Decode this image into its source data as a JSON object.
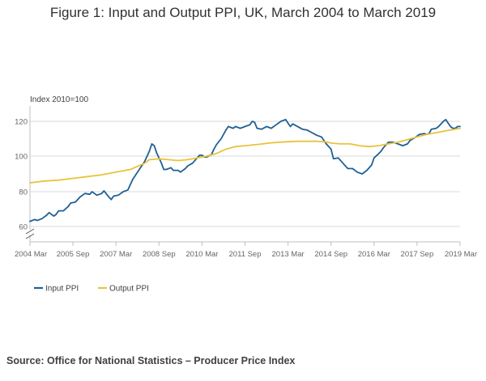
{
  "chart_data": {
    "type": "line",
    "title": "Figure 1: Input and Output PPI, UK, March 2004 to March 2019",
    "ylabel": "Index 2010=100",
    "xlabel": "",
    "ylim": [
      60,
      130
    ],
    "yticks": [
      {
        "value": 60,
        "label": "60"
      },
      {
        "value": 80,
        "label": "80"
      },
      {
        "value": 100,
        "label": "100"
      },
      {
        "value": 120,
        "label": "120"
      }
    ],
    "xticks": [
      {
        "t": 0,
        "label": "2004 Mar"
      },
      {
        "t": 18,
        "label": "2005 Sep"
      },
      {
        "t": 36,
        "label": "2007 Mar"
      },
      {
        "t": 54,
        "label": "2008 Sep"
      },
      {
        "t": 72,
        "label": "2010 Mar"
      },
      {
        "t": 90,
        "label": "2011 Sep"
      },
      {
        "t": 108,
        "label": "2013 Mar"
      },
      {
        "t": 126,
        "label": "2014 Sep"
      },
      {
        "t": 144,
        "label": "2016 Mar"
      },
      {
        "t": 162,
        "label": "2017 Sep"
      },
      {
        "t": 180,
        "label": "2019 Mar"
      }
    ],
    "grid": true,
    "axis_break": true,
    "x_unit": "months since 2004 Mar",
    "series": [
      {
        "name": "Input PPI",
        "color": "#206095",
        "points": [
          [
            0,
            63
          ],
          [
            2,
            64
          ],
          [
            3,
            63.5
          ],
          [
            5,
            64.5
          ],
          [
            7,
            66.5
          ],
          [
            8,
            68
          ],
          [
            10,
            66
          ],
          [
            11,
            67
          ],
          [
            12,
            69
          ],
          [
            14,
            69
          ],
          [
            16,
            71.5
          ],
          [
            17,
            73.5
          ],
          [
            19,
            74
          ],
          [
            21,
            77
          ],
          [
            23,
            79
          ],
          [
            25,
            78.5
          ],
          [
            26,
            80
          ],
          [
            27,
            79
          ],
          [
            28,
            78
          ],
          [
            30,
            79
          ],
          [
            31,
            80.5
          ],
          [
            33,
            77
          ],
          [
            34,
            75.5
          ],
          [
            35,
            77.5
          ],
          [
            37,
            78
          ],
          [
            39,
            80
          ],
          [
            41,
            81
          ],
          [
            43,
            87
          ],
          [
            45,
            91
          ],
          [
            47,
            95
          ],
          [
            48,
            97
          ],
          [
            50,
            103
          ],
          [
            51,
            107
          ],
          [
            52,
            106
          ],
          [
            53,
            102
          ],
          [
            55,
            96
          ],
          [
            56,
            92.5
          ],
          [
            57,
            92.5
          ],
          [
            59,
            93.5
          ],
          [
            60,
            92
          ],
          [
            62,
            92
          ],
          [
            63,
            91
          ],
          [
            65,
            93
          ],
          [
            66,
            94.5
          ],
          [
            68,
            96
          ],
          [
            70,
            99
          ],
          [
            71,
            100.5
          ],
          [
            72,
            100.5
          ],
          [
            73,
            99.5
          ],
          [
            74,
            99.5
          ],
          [
            76,
            101
          ],
          [
            77,
            104
          ],
          [
            78,
            106.5
          ],
          [
            80,
            110
          ],
          [
            82,
            115
          ],
          [
            83,
            117
          ],
          [
            85,
            116
          ],
          [
            86,
            117
          ],
          [
            88,
            116
          ],
          [
            90,
            117
          ],
          [
            92,
            118
          ],
          [
            93,
            120
          ],
          [
            94,
            119.5
          ],
          [
            95,
            116
          ],
          [
            97,
            115.5
          ],
          [
            99,
            117
          ],
          [
            101,
            116
          ],
          [
            103,
            118
          ],
          [
            105,
            120
          ],
          [
            107,
            121
          ],
          [
            108,
            119
          ],
          [
            109,
            117
          ],
          [
            110,
            118.5
          ],
          [
            112,
            117
          ],
          [
            114,
            115.5
          ],
          [
            116,
            115
          ],
          [
            118,
            113.5
          ],
          [
            120,
            112
          ],
          [
            122,
            111
          ],
          [
            124,
            107
          ],
          [
            126,
            104
          ],
          [
            127,
            98.5
          ],
          [
            129,
            99
          ],
          [
            131,
            96
          ],
          [
            133,
            93
          ],
          [
            135,
            93
          ],
          [
            137,
            91
          ],
          [
            139,
            90
          ],
          [
            141,
            92
          ],
          [
            143,
            95
          ],
          [
            144,
            99
          ],
          [
            146,
            101.5
          ],
          [
            147,
            103
          ],
          [
            148,
            105
          ],
          [
            150,
            108
          ],
          [
            152,
            108
          ],
          [
            154,
            107
          ],
          [
            156,
            106
          ],
          [
            158,
            107
          ],
          [
            159,
            109
          ],
          [
            161,
            110.5
          ],
          [
            163,
            112.5
          ],
          [
            165,
            113
          ],
          [
            166,
            112.5
          ],
          [
            167,
            113
          ],
          [
            168,
            115.5
          ],
          [
            170,
            116
          ],
          [
            171,
            117
          ],
          [
            173,
            120
          ],
          [
            174,
            121
          ],
          [
            175,
            119
          ],
          [
            176,
            117
          ],
          [
            177,
            116
          ],
          [
            178,
            116
          ],
          [
            179,
            117
          ],
          [
            180,
            117
          ]
        ]
      },
      {
        "name": "Output PPI",
        "color": "#e8c33c",
        "points": [
          [
            0,
            85
          ],
          [
            6,
            86
          ],
          [
            12,
            86.5
          ],
          [
            18,
            87.5
          ],
          [
            24,
            88.5
          ],
          [
            30,
            89.5
          ],
          [
            36,
            91
          ],
          [
            42,
            92.5
          ],
          [
            48,
            96
          ],
          [
            50,
            98
          ],
          [
            54,
            98.5
          ],
          [
            58,
            98
          ],
          [
            62,
            97.5
          ],
          [
            66,
            98
          ],
          [
            70,
            99
          ],
          [
            74,
            100
          ],
          [
            78,
            101.5
          ],
          [
            82,
            104
          ],
          [
            86,
            105.5
          ],
          [
            90,
            106
          ],
          [
            96,
            106.8
          ],
          [
            100,
            107.5
          ],
          [
            104,
            108
          ],
          [
            108,
            108.3
          ],
          [
            112,
            108.5
          ],
          [
            116,
            108.5
          ],
          [
            120,
            108.5
          ],
          [
            124,
            108.2
          ],
          [
            126,
            107.5
          ],
          [
            130,
            107
          ],
          [
            134,
            107
          ],
          [
            138,
            106
          ],
          [
            142,
            105.5
          ],
          [
            146,
            106
          ],
          [
            150,
            107
          ],
          [
            154,
            108
          ],
          [
            158,
            109.5
          ],
          [
            162,
            111
          ],
          [
            166,
            112.5
          ],
          [
            170,
            113.5
          ],
          [
            174,
            114.5
          ],
          [
            176,
            115
          ],
          [
            178,
            115.5
          ],
          [
            180,
            116
          ]
        ]
      }
    ]
  },
  "legend": {
    "items": [
      {
        "label": "Input PPI",
        "color": "#206095"
      },
      {
        "label": "Output PPI",
        "color": "#e8c33c"
      }
    ]
  },
  "source": {
    "text": "Source: Office for National Statistics – Producer Price Index"
  }
}
